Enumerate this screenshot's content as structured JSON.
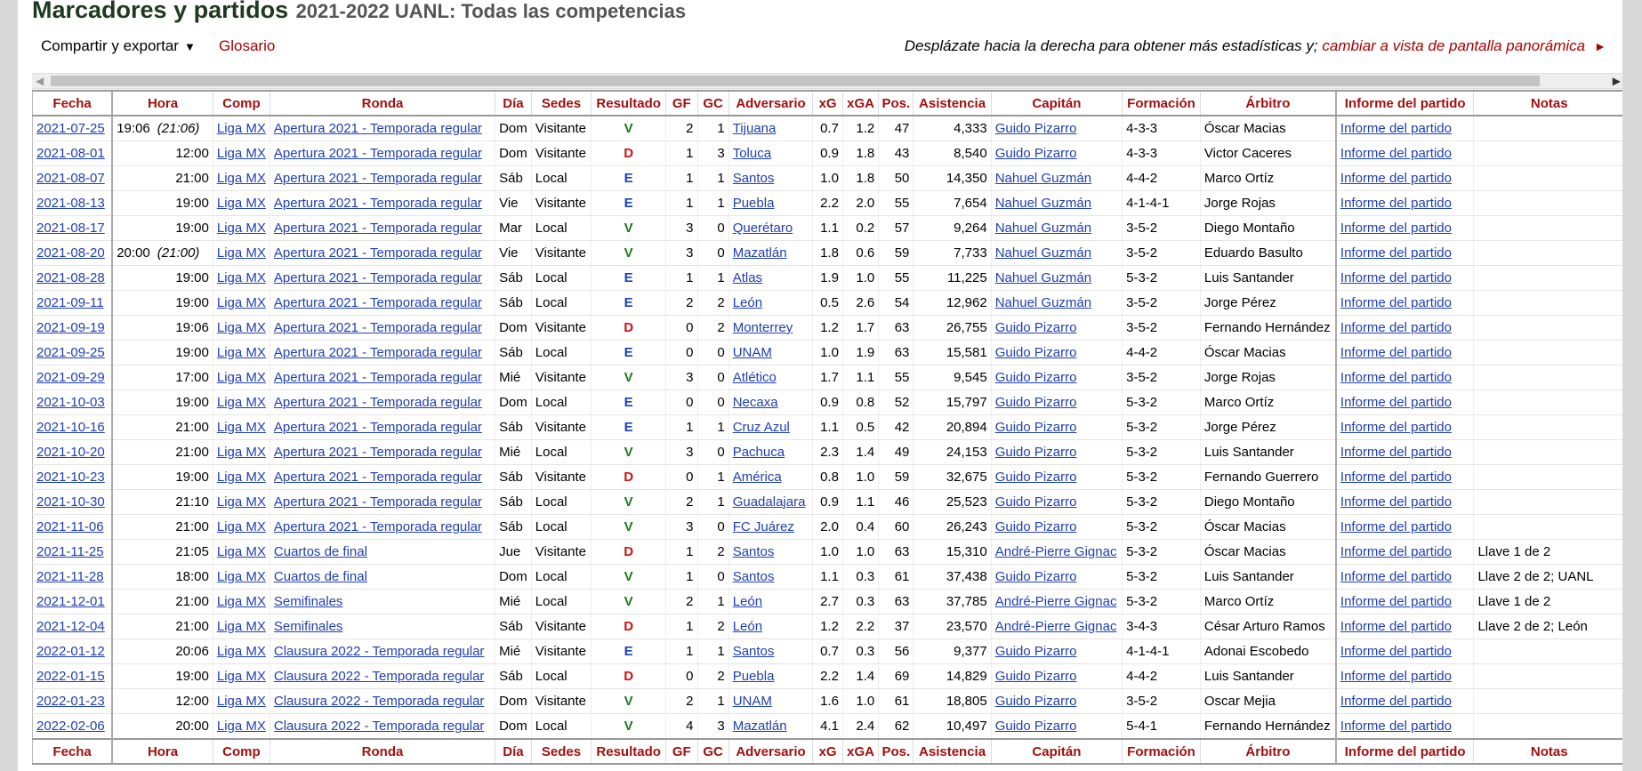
{
  "header": {
    "title": "Marcadores y partidos",
    "subtitle": "2021-2022 UANL: Todas las competencias"
  },
  "toolbar": {
    "share_label": "Compartir y exportar",
    "glossary_label": "Glosario",
    "scroll_hint": "Desplázate hacia la derecha para obtener más estadísticas y;",
    "widescreen_link": "cambiar a vista de pantalla panorámica",
    "widescreen_arrow": "►"
  },
  "scrollbar": {
    "left_arrow": "◀",
    "right_arrow": "▶"
  },
  "colors": {
    "win": "#1a7a1a",
    "loss": "#cc1111",
    "draw": "#1a3fbb",
    "header_text": "#a01010",
    "link": "#2040b0"
  },
  "table": {
    "columns": [
      "Fecha",
      "Hora",
      "Comp",
      "Ronda",
      "Día",
      "Sedes",
      "Resultado",
      "GF",
      "GC",
      "Adversario",
      "xG",
      "xGA",
      "Pos.",
      "Asistencia",
      "Capitán",
      "Formación",
      "Árbitro",
      "Informe del partido",
      "Notas"
    ],
    "rows": [
      {
        "fecha": "2021-07-25",
        "hora": "19:06",
        "hora_local": "(21:06)",
        "comp": "Liga MX",
        "ronda": "Apertura 2021 - Temporada regular",
        "dia": "Dom",
        "sede": "Visitante",
        "res": "V",
        "gf": "2",
        "gc": "1",
        "adv": "Tijuana",
        "xg": "0.7",
        "xga": "1.2",
        "pos": "47",
        "asis": "4,333",
        "cap": "Guido Pizarro",
        "form": "4-3-3",
        "arb": "Óscar Macias",
        "inf": "Informe del partido",
        "notas": ""
      },
      {
        "fecha": "2021-08-01",
        "hora": "12:00",
        "hora_local": "",
        "comp": "Liga MX",
        "ronda": "Apertura 2021 - Temporada regular",
        "dia": "Dom",
        "sede": "Visitante",
        "res": "D",
        "gf": "1",
        "gc": "3",
        "adv": "Toluca",
        "xg": "0.9",
        "xga": "1.8",
        "pos": "43",
        "asis": "8,540",
        "cap": "Guido Pizarro",
        "form": "4-3-3",
        "arb": "Victor Caceres",
        "inf": "Informe del partido",
        "notas": ""
      },
      {
        "fecha": "2021-08-07",
        "hora": "21:00",
        "hora_local": "",
        "comp": "Liga MX",
        "ronda": "Apertura 2021 - Temporada regular",
        "dia": "Sáb",
        "sede": "Local",
        "res": "E",
        "gf": "1",
        "gc": "1",
        "adv": "Santos",
        "xg": "1.0",
        "xga": "1.8",
        "pos": "50",
        "asis": "14,350",
        "cap": "Nahuel Guzmán",
        "form": "4-4-2",
        "arb": "Marco Ortíz",
        "inf": "Informe del partido",
        "notas": ""
      },
      {
        "fecha": "2021-08-13",
        "hora": "19:00",
        "hora_local": "",
        "comp": "Liga MX",
        "ronda": "Apertura 2021 - Temporada regular",
        "dia": "Vie",
        "sede": "Visitante",
        "res": "E",
        "gf": "1",
        "gc": "1",
        "adv": "Puebla",
        "xg": "2.2",
        "xga": "2.0",
        "pos": "55",
        "asis": "7,654",
        "cap": "Nahuel Guzmán",
        "form": "4-1-4-1",
        "arb": "Jorge Rojas",
        "inf": "Informe del partido",
        "notas": ""
      },
      {
        "fecha": "2021-08-17",
        "hora": "19:00",
        "hora_local": "",
        "comp": "Liga MX",
        "ronda": "Apertura 2021 - Temporada regular",
        "dia": "Mar",
        "sede": "Local",
        "res": "V",
        "gf": "3",
        "gc": "0",
        "adv": "Querétaro",
        "xg": "1.1",
        "xga": "0.2",
        "pos": "57",
        "asis": "9,264",
        "cap": "Nahuel Guzmán",
        "form": "3-5-2",
        "arb": "Diego Montaño",
        "inf": "Informe del partido",
        "notas": ""
      },
      {
        "fecha": "2021-08-20",
        "hora": "20:00",
        "hora_local": "(21:00)",
        "comp": "Liga MX",
        "ronda": "Apertura 2021 - Temporada regular",
        "dia": "Vie",
        "sede": "Visitante",
        "res": "V",
        "gf": "3",
        "gc": "0",
        "adv": "Mazatlán",
        "xg": "1.8",
        "xga": "0.6",
        "pos": "59",
        "asis": "7,733",
        "cap": "Nahuel Guzmán",
        "form": "3-5-2",
        "arb": "Eduardo Basulto",
        "inf": "Informe del partido",
        "notas": ""
      },
      {
        "fecha": "2021-08-28",
        "hora": "19:00",
        "hora_local": "",
        "comp": "Liga MX",
        "ronda": "Apertura 2021 - Temporada regular",
        "dia": "Sáb",
        "sede": "Local",
        "res": "E",
        "gf": "1",
        "gc": "1",
        "adv": "Atlas",
        "xg": "1.9",
        "xga": "1.0",
        "pos": "55",
        "asis": "11,225",
        "cap": "Nahuel Guzmán",
        "form": "5-3-2",
        "arb": "Luis Santander",
        "inf": "Informe del partido",
        "notas": ""
      },
      {
        "fecha": "2021-09-11",
        "hora": "19:00",
        "hora_local": "",
        "comp": "Liga MX",
        "ronda": "Apertura 2021 - Temporada regular",
        "dia": "Sáb",
        "sede": "Local",
        "res": "E",
        "gf": "2",
        "gc": "2",
        "adv": "León",
        "xg": "0.5",
        "xga": "2.6",
        "pos": "54",
        "asis": "12,962",
        "cap": "Nahuel Guzmán",
        "form": "3-5-2",
        "arb": "Jorge Pérez",
        "inf": "Informe del partido",
        "notas": ""
      },
      {
        "fecha": "2021-09-19",
        "hora": "19:06",
        "hora_local": "",
        "comp": "Liga MX",
        "ronda": "Apertura 2021 - Temporada regular",
        "dia": "Dom",
        "sede": "Visitante",
        "res": "D",
        "gf": "0",
        "gc": "2",
        "adv": "Monterrey",
        "xg": "1.2",
        "xga": "1.7",
        "pos": "63",
        "asis": "26,755",
        "cap": "Guido Pizarro",
        "form": "3-5-2",
        "arb": "Fernando Hernández",
        "inf": "Informe del partido",
        "notas": ""
      },
      {
        "fecha": "2021-09-25",
        "hora": "19:00",
        "hora_local": "",
        "comp": "Liga MX",
        "ronda": "Apertura 2021 - Temporada regular",
        "dia": "Sáb",
        "sede": "Local",
        "res": "E",
        "gf": "0",
        "gc": "0",
        "adv": "UNAM",
        "xg": "1.0",
        "xga": "1.9",
        "pos": "63",
        "asis": "15,581",
        "cap": "Guido Pizarro",
        "form": "4-4-2",
        "arb": "Óscar Macias",
        "inf": "Informe del partido",
        "notas": ""
      },
      {
        "fecha": "2021-09-29",
        "hora": "17:00",
        "hora_local": "",
        "comp": "Liga MX",
        "ronda": "Apertura 2021 - Temporada regular",
        "dia": "Mié",
        "sede": "Visitante",
        "res": "V",
        "gf": "3",
        "gc": "0",
        "adv": "Atlético",
        "xg": "1.7",
        "xga": "1.1",
        "pos": "55",
        "asis": "9,545",
        "cap": "Guido Pizarro",
        "form": "3-5-2",
        "arb": "Jorge Rojas",
        "inf": "Informe del partido",
        "notas": ""
      },
      {
        "fecha": "2021-10-03",
        "hora": "19:00",
        "hora_local": "",
        "comp": "Liga MX",
        "ronda": "Apertura 2021 - Temporada regular",
        "dia": "Dom",
        "sede": "Local",
        "res": "E",
        "gf": "0",
        "gc": "0",
        "adv": "Necaxa",
        "xg": "0.9",
        "xga": "0.8",
        "pos": "52",
        "asis": "15,797",
        "cap": "Guido Pizarro",
        "form": "5-3-2",
        "arb": "Marco Ortíz",
        "inf": "Informe del partido",
        "notas": ""
      },
      {
        "fecha": "2021-10-16",
        "hora": "21:00",
        "hora_local": "",
        "comp": "Liga MX",
        "ronda": "Apertura 2021 - Temporada regular",
        "dia": "Sáb",
        "sede": "Visitante",
        "res": "E",
        "gf": "1",
        "gc": "1",
        "adv": "Cruz Azul",
        "xg": "1.1",
        "xga": "0.5",
        "pos": "42",
        "asis": "20,894",
        "cap": "Guido Pizarro",
        "form": "5-3-2",
        "arb": "Jorge Pérez",
        "inf": "Informe del partido",
        "notas": ""
      },
      {
        "fecha": "2021-10-20",
        "hora": "21:00",
        "hora_local": "",
        "comp": "Liga MX",
        "ronda": "Apertura 2021 - Temporada regular",
        "dia": "Mié",
        "sede": "Local",
        "res": "V",
        "gf": "3",
        "gc": "0",
        "adv": "Pachuca",
        "xg": "2.3",
        "xga": "1.4",
        "pos": "49",
        "asis": "24,153",
        "cap": "Guido Pizarro",
        "form": "5-3-2",
        "arb": "Luis Santander",
        "inf": "Informe del partido",
        "notas": ""
      },
      {
        "fecha": "2021-10-23",
        "hora": "19:00",
        "hora_local": "",
        "comp": "Liga MX",
        "ronda": "Apertura 2021 - Temporada regular",
        "dia": "Sáb",
        "sede": "Visitante",
        "res": "D",
        "gf": "0",
        "gc": "1",
        "adv": "América",
        "xg": "0.8",
        "xga": "1.0",
        "pos": "59",
        "asis": "32,675",
        "cap": "Guido Pizarro",
        "form": "5-3-2",
        "arb": "Fernando Guerrero",
        "inf": "Informe del partido",
        "notas": ""
      },
      {
        "fecha": "2021-10-30",
        "hora": "21:10",
        "hora_local": "",
        "comp": "Liga MX",
        "ronda": "Apertura 2021 - Temporada regular",
        "dia": "Sáb",
        "sede": "Local",
        "res": "V",
        "gf": "2",
        "gc": "1",
        "adv": "Guadalajara",
        "xg": "0.9",
        "xga": "1.1",
        "pos": "46",
        "asis": "25,523",
        "cap": "Guido Pizarro",
        "form": "5-3-2",
        "arb": "Diego Montaño",
        "inf": "Informe del partido",
        "notas": ""
      },
      {
        "fecha": "2021-11-06",
        "hora": "21:00",
        "hora_local": "",
        "comp": "Liga MX",
        "ronda": "Apertura 2021 - Temporada regular",
        "dia": "Sáb",
        "sede": "Local",
        "res": "V",
        "gf": "3",
        "gc": "0",
        "adv": "FC Juárez",
        "xg": "2.0",
        "xga": "0.4",
        "pos": "60",
        "asis": "26,243",
        "cap": "Guido Pizarro",
        "form": "5-3-2",
        "arb": "Óscar Macias",
        "inf": "Informe del partido",
        "notas": ""
      },
      {
        "fecha": "2021-11-25",
        "hora": "21:05",
        "hora_local": "",
        "comp": "Liga MX",
        "ronda": "Cuartos de final",
        "dia": "Jue",
        "sede": "Visitante",
        "res": "D",
        "gf": "1",
        "gc": "2",
        "adv": "Santos",
        "xg": "1.0",
        "xga": "1.0",
        "pos": "63",
        "asis": "15,310",
        "cap": "André-Pierre Gignac",
        "form": "5-3-2",
        "arb": "Óscar Macias",
        "inf": "Informe del partido",
        "notas": "Llave 1 de 2"
      },
      {
        "fecha": "2021-11-28",
        "hora": "18:00",
        "hora_local": "",
        "comp": "Liga MX",
        "ronda": "Cuartos de final",
        "dia": "Dom",
        "sede": "Local",
        "res": "V",
        "gf": "1",
        "gc": "0",
        "adv": "Santos",
        "xg": "1.1",
        "xga": "0.3",
        "pos": "61",
        "asis": "37,438",
        "cap": "Guido Pizarro",
        "form": "5-3-2",
        "arb": "Luis Santander",
        "inf": "Informe del partido",
        "notas": "Llave 2 de 2; UANL"
      },
      {
        "fecha": "2021-12-01",
        "hora": "21:00",
        "hora_local": "",
        "comp": "Liga MX",
        "ronda": "Semifinales",
        "dia": "Mié",
        "sede": "Local",
        "res": "V",
        "gf": "2",
        "gc": "1",
        "adv": "León",
        "xg": "2.7",
        "xga": "0.3",
        "pos": "63",
        "asis": "37,785",
        "cap": "André-Pierre Gignac",
        "form": "5-3-2",
        "arb": "Marco Ortíz",
        "inf": "Informe del partido",
        "notas": "Llave 1 de 2"
      },
      {
        "fecha": "2021-12-04",
        "hora": "21:00",
        "hora_local": "",
        "comp": "Liga MX",
        "ronda": "Semifinales",
        "dia": "Sáb",
        "sede": "Visitante",
        "res": "D",
        "gf": "1",
        "gc": "2",
        "adv": "León",
        "xg": "1.2",
        "xga": "2.2",
        "pos": "37",
        "asis": "23,570",
        "cap": "André-Pierre Gignac",
        "form": "3-4-3",
        "arb": "César Arturo Ramos",
        "inf": "Informe del partido",
        "notas": "Llave 2 de 2; León"
      },
      {
        "fecha": "2022-01-12",
        "hora": "20:06",
        "hora_local": "",
        "comp": "Liga MX",
        "ronda": "Clausura 2022 - Temporada regular",
        "dia": "Mié",
        "sede": "Visitante",
        "res": "E",
        "gf": "1",
        "gc": "1",
        "adv": "Santos",
        "xg": "0.7",
        "xga": "0.3",
        "pos": "56",
        "asis": "9,377",
        "cap": "Guido Pizarro",
        "form": "4-1-4-1",
        "arb": "Adonai Escobedo",
        "inf": "Informe del partido",
        "notas": ""
      },
      {
        "fecha": "2022-01-15",
        "hora": "19:00",
        "hora_local": "",
        "comp": "Liga MX",
        "ronda": "Clausura 2022 - Temporada regular",
        "dia": "Sáb",
        "sede": "Local",
        "res": "D",
        "gf": "0",
        "gc": "2",
        "adv": "Puebla",
        "xg": "2.2",
        "xga": "1.4",
        "pos": "69",
        "asis": "14,829",
        "cap": "Guido Pizarro",
        "form": "4-4-2",
        "arb": "Luis Santander",
        "inf": "Informe del partido",
        "notas": ""
      },
      {
        "fecha": "2022-01-23",
        "hora": "12:00",
        "hora_local": "",
        "comp": "Liga MX",
        "ronda": "Clausura 2022 - Temporada regular",
        "dia": "Dom",
        "sede": "Visitante",
        "res": "V",
        "gf": "2",
        "gc": "1",
        "adv": "UNAM",
        "xg": "1.6",
        "xga": "1.0",
        "pos": "61",
        "asis": "18,805",
        "cap": "Guido Pizarro",
        "form": "3-5-2",
        "arb": "Oscar Mejia",
        "inf": "Informe del partido",
        "notas": ""
      },
      {
        "fecha": "2022-02-06",
        "hora": "20:00",
        "hora_local": "",
        "comp": "Liga MX",
        "ronda": "Clausura 2022 - Temporada regular",
        "dia": "Dom",
        "sede": "Local",
        "res": "V",
        "gf": "4",
        "gc": "3",
        "adv": "Mazatlán",
        "xg": "4.1",
        "xga": "2.4",
        "pos": "62",
        "asis": "10,497",
        "cap": "Guido Pizarro",
        "form": "5-4-1",
        "arb": "Fernando Hernández",
        "inf": "Informe del partido",
        "notas": ""
      }
    ]
  }
}
